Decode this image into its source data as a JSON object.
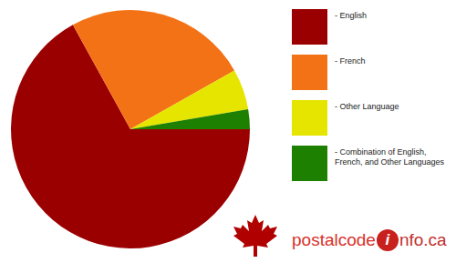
{
  "chart_data": {
    "type": "pie",
    "categories": [
      "- English",
      "- French",
      "- Other Language",
      "- Combination of English, French, and Other Languages"
    ],
    "values": [
      67,
      24.8,
      5.5,
      2.7
    ],
    "colors": [
      "#9b0000",
      "#f47216",
      "#e5e500",
      "#1e8000"
    ],
    "legend": "right"
  },
  "logo_text": [
    "postalcode",
    "i",
    "nfo.ca"
  ]
}
